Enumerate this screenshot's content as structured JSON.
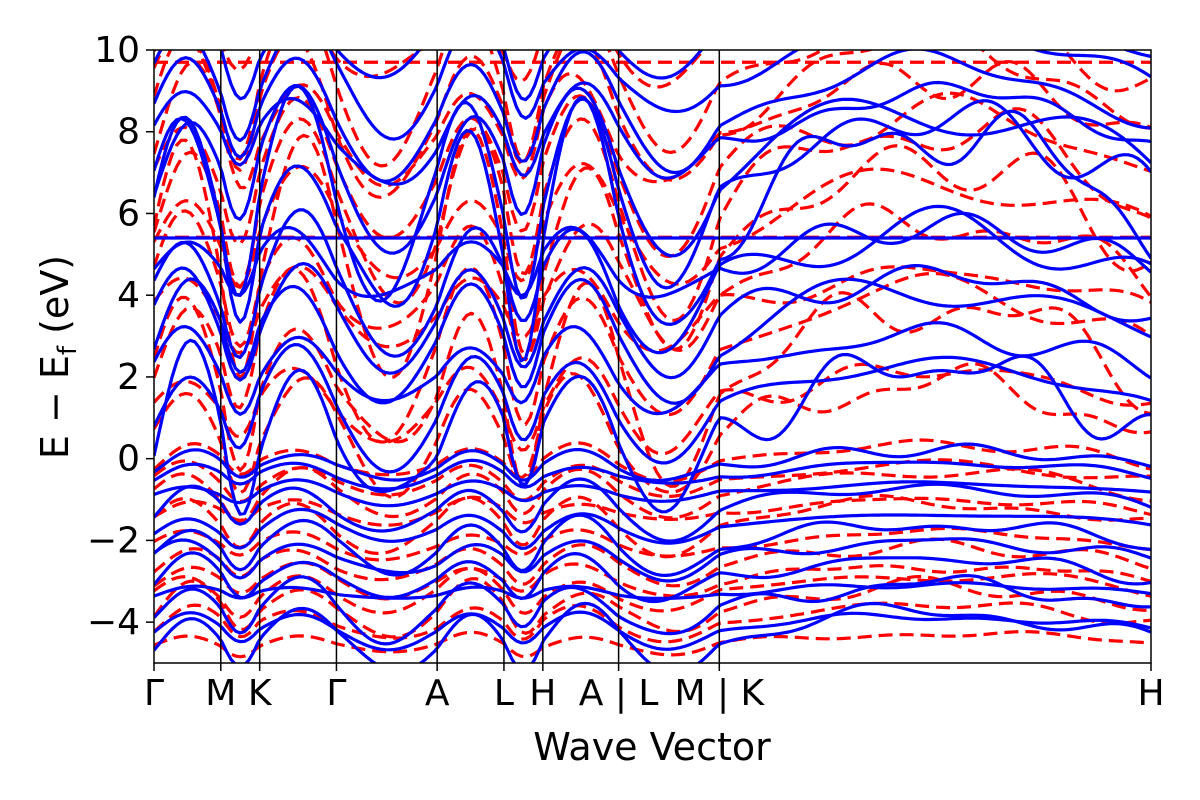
{
  "chart_data": {
    "type": "line",
    "title": "",
    "xlabel": "Wave Vector",
    "ylabel_main": "E − E",
    "ylabel_sub": "f",
    "ylabel_tail": " (eV)",
    "ylim": [
      -5,
      10
    ],
    "yticks": [
      {
        "value": 10,
        "label": "10"
      },
      {
        "value": 8,
        "label": "8"
      },
      {
        "value": 6,
        "label": "6"
      },
      {
        "value": 4,
        "label": "4"
      },
      {
        "value": 2,
        "label": "2"
      },
      {
        "value": 0,
        "label": "0"
      },
      {
        "value": -2,
        "label": "−2"
      },
      {
        "value": -4,
        "label": "−4"
      }
    ],
    "xlim": [
      0,
      10
    ],
    "kpoints": [
      {
        "pos": 0.0,
        "label": "Γ"
      },
      {
        "pos": 0.67,
        "label": "M"
      },
      {
        "pos": 1.06,
        "label": "K"
      },
      {
        "pos": 1.83,
        "label": "Γ"
      },
      {
        "pos": 2.84,
        "label": "A"
      },
      {
        "pos": 3.51,
        "label": "L"
      },
      {
        "pos": 3.9,
        "label": "H"
      },
      {
        "pos": 4.66,
        "label": "A | L"
      },
      {
        "pos": 5.67,
        "label": "M | K"
      },
      {
        "pos": 10.0,
        "label": "H"
      }
    ],
    "grid": false,
    "legend": "none",
    "series": [
      {
        "style": "solid",
        "color": "#0000ff",
        "band_count": 26
      },
      {
        "style": "dashed",
        "color": "#ff0000",
        "band_count": 26
      }
    ],
    "flat_band_energy": 5.4
  }
}
